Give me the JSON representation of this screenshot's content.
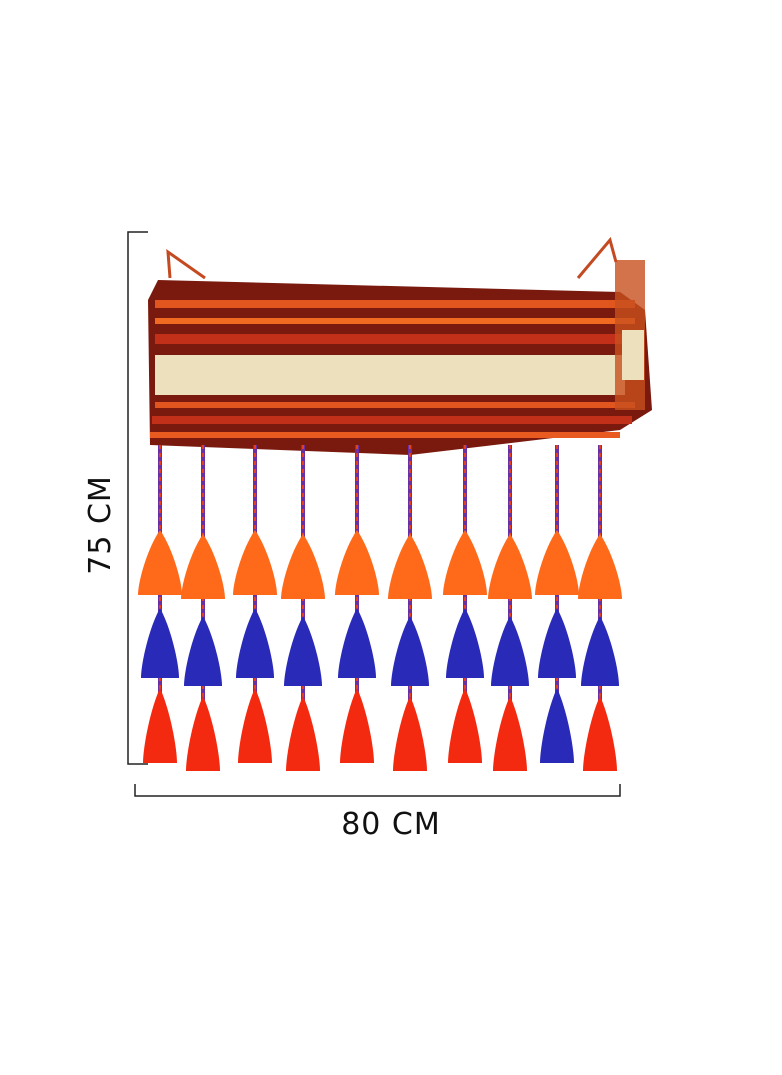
{
  "dimensions": {
    "height": "75 CM",
    "width": "80 CM"
  }
}
